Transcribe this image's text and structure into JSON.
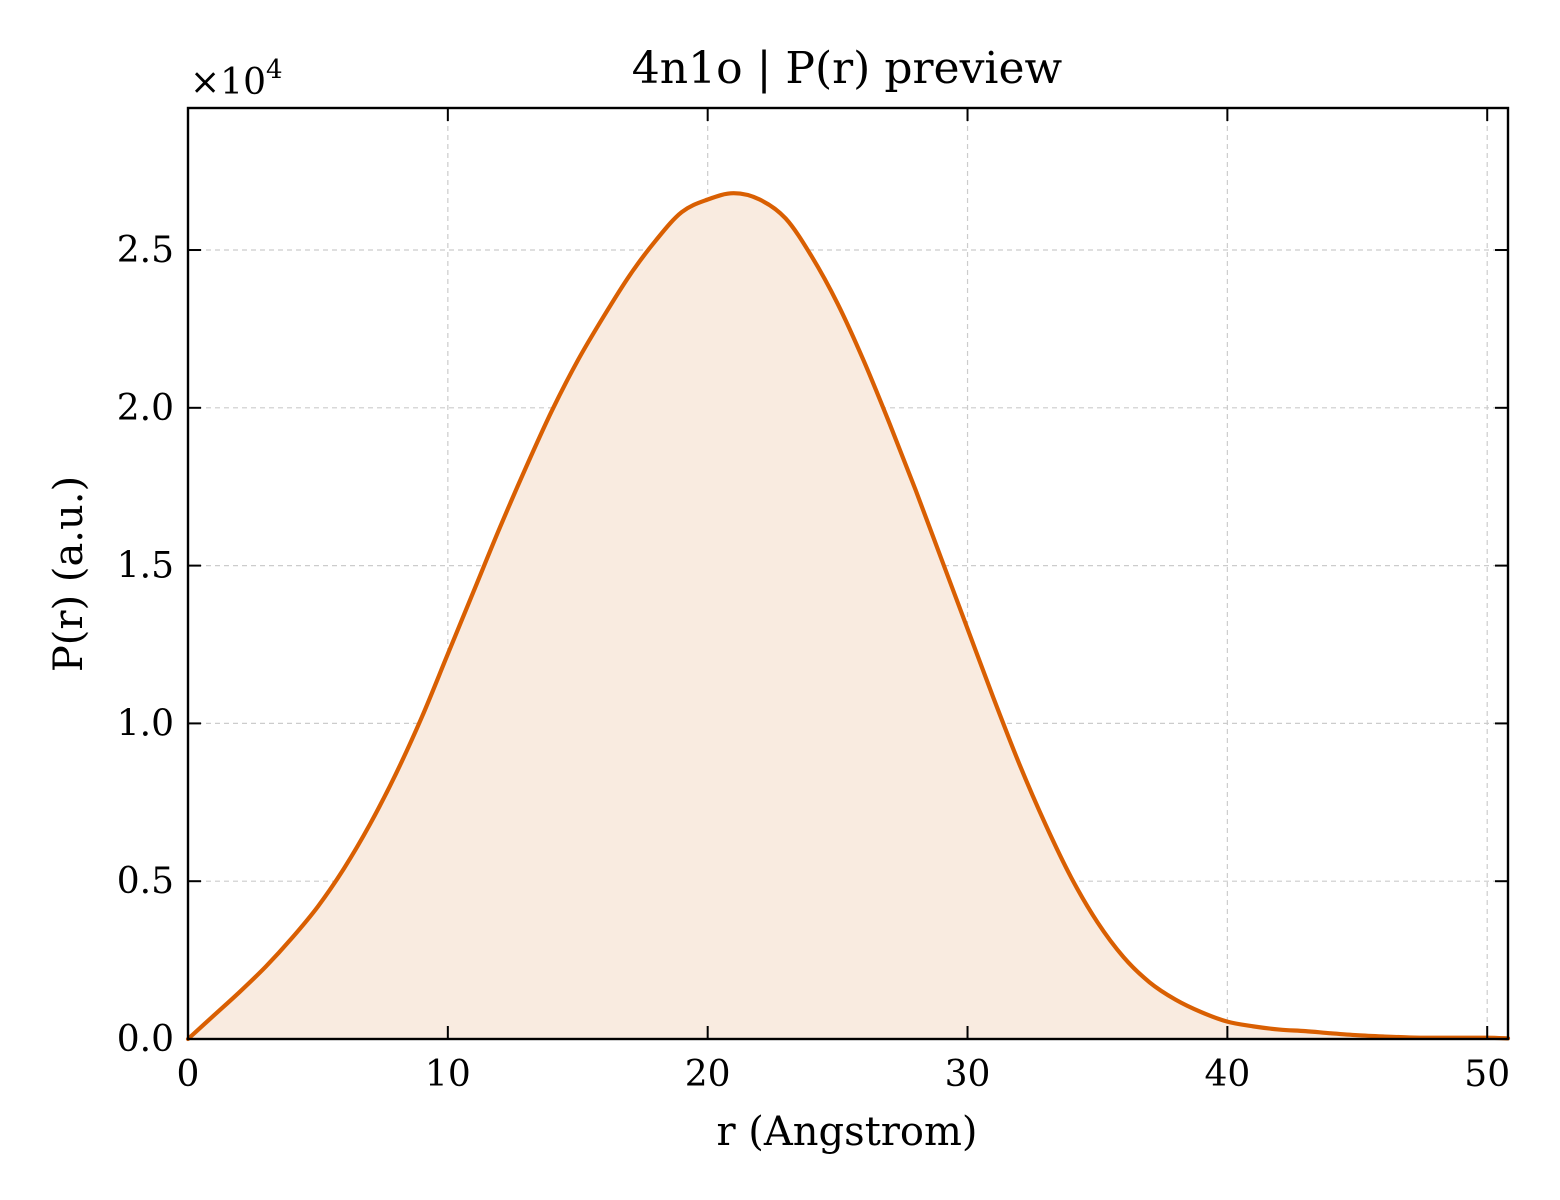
{
  "chart_data": {
    "type": "area",
    "title": "4n1o | P(r) preview",
    "xlabel": "r (Angstrom)",
    "ylabel": "P(r) (a.u.)",
    "y_multiplier_base": "×10",
    "y_multiplier_exp": "4",
    "xlim": [
      0,
      50.8
    ],
    "ylim": [
      0,
      2.95
    ],
    "xticks": [
      0,
      10,
      20,
      30,
      40,
      50
    ],
    "xtick_labels": [
      "0",
      "10",
      "20",
      "30",
      "40",
      "50"
    ],
    "yticks": [
      0,
      0.5,
      1.0,
      1.5,
      2.0,
      2.5
    ],
    "ytick_labels": [
      "0.0",
      "0.5",
      "1.0",
      "1.5",
      "2.0",
      "2.5"
    ],
    "grid": true,
    "line_color": "#d95f02",
    "fill_color": "#f9ebe0",
    "series": [
      {
        "x": [
          0,
          1,
          2,
          3,
          4,
          5,
          6,
          7,
          8,
          9,
          10,
          11,
          12,
          13,
          14,
          15,
          16,
          17,
          18,
          19,
          20,
          21,
          22,
          23,
          24,
          25,
          26,
          27,
          28,
          29,
          30,
          31,
          32,
          33,
          34,
          35,
          36,
          37,
          38,
          39,
          40,
          41,
          42,
          43,
          44,
          45,
          46,
          47,
          48,
          49,
          50,
          50.8
        ],
        "y": [
          0.0,
          0.075,
          0.15,
          0.23,
          0.32,
          0.42,
          0.54,
          0.68,
          0.84,
          1.02,
          1.22,
          1.42,
          1.62,
          1.81,
          1.99,
          2.15,
          2.29,
          2.42,
          2.53,
          2.62,
          2.66,
          2.68,
          2.66,
          2.6,
          2.48,
          2.33,
          2.15,
          1.95,
          1.74,
          1.52,
          1.3,
          1.08,
          0.87,
          0.68,
          0.51,
          0.37,
          0.26,
          0.18,
          0.125,
          0.085,
          0.055,
          0.04,
          0.03,
          0.025,
          0.018,
          0.012,
          0.008,
          0.005,
          0.004,
          0.004,
          0.004,
          0.002
        ]
      }
    ]
  }
}
